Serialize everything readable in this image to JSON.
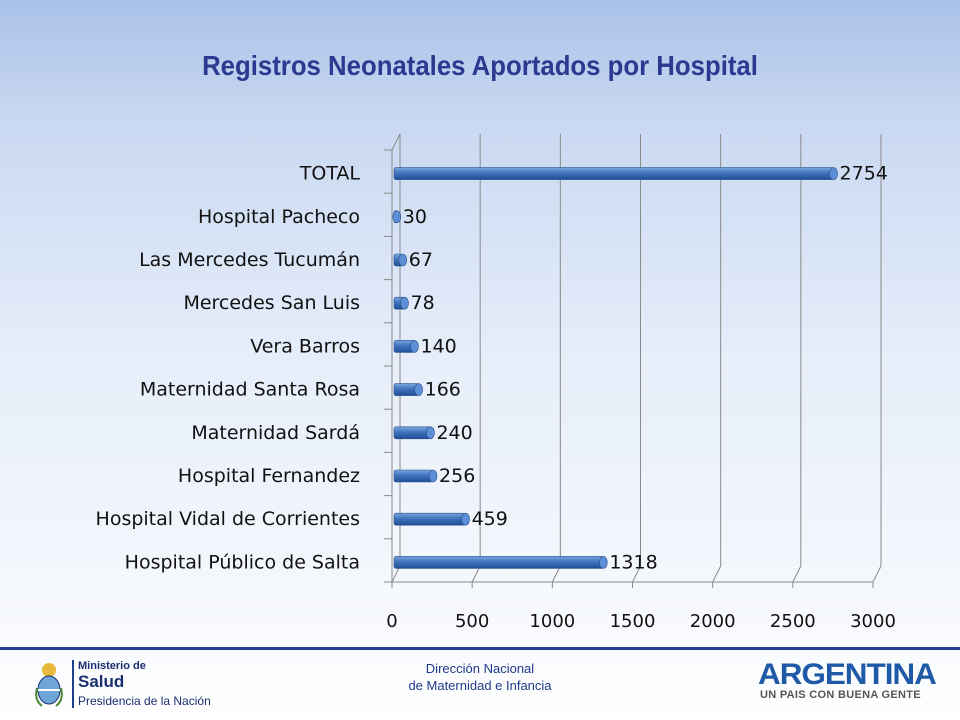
{
  "title": "Registros Neonatales Aportados por Hospital",
  "chart_data": {
    "type": "bar",
    "orientation": "horizontal",
    "title": "Registros Neonatales Aportados por Hospital",
    "categories": [
      "TOTAL",
      "Hospital Pacheco",
      "Las Mercedes Tucumán",
      "Mercedes San Luis",
      "Vera Barros",
      "Maternidad Santa Rosa",
      "Maternidad Sardá",
      "Hospital Fernandez",
      "Hospital Vidal de Corrientes",
      "Hospital Público de Salta"
    ],
    "values": [
      2754,
      30,
      67,
      78,
      140,
      166,
      240,
      256,
      459,
      1318
    ],
    "xlim": [
      0,
      3000
    ],
    "xticks": [
      0,
      500,
      1000,
      1500,
      2000,
      2500,
      3000
    ],
    "xlabel": "",
    "ylabel": "",
    "grid": true,
    "bar_color": "#4a7cc4",
    "data_labels": true
  },
  "footer": {
    "line1": "Dirección Nacional",
    "line2": "de Maternidad e Infancia"
  },
  "ministry_logo": {
    "line1": "Ministerio de",
    "line2": "Salud",
    "line3": "Presidencia de la Nación"
  },
  "argentina_logo": {
    "line1": "ARGENTINA",
    "line2": "UN PAIS CON BUENA GENTE"
  }
}
